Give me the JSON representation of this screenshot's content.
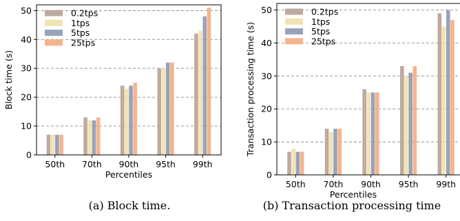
{
  "colors": {
    "0.2tps": "#bfaaa0",
    "1tps": "#f3e3b2",
    "5tps": "#98a3bb",
    "25tps": "#f6b48d",
    "grid": "#8c8c8c"
  },
  "chart_data": [
    {
      "type": "bar",
      "caption": "(a) Block time.",
      "xlabel": "Percentiles",
      "ylabel": "Block time (s)",
      "categories": [
        "50th",
        "70th",
        "90th",
        "95th",
        "99th"
      ],
      "ylim": [
        0,
        52
      ],
      "yticks": [
        0,
        10,
        20,
        30,
        40,
        50
      ],
      "grid": "horizontal dashed",
      "legend_position": "top-left",
      "series": [
        {
          "name": "0.2tps",
          "values": [
            7,
            13,
            24,
            30,
            42
          ]
        },
        {
          "name": "1tps",
          "values": [
            7,
            12,
            23,
            30,
            43
          ]
        },
        {
          "name": "5tps",
          "values": [
            7,
            12,
            24,
            32,
            48
          ]
        },
        {
          "name": "25tps",
          "values": [
            7,
            13,
            25,
            32,
            51
          ]
        }
      ]
    },
    {
      "type": "bar",
      "caption": "(b) Transaction processing time",
      "xlabel": "Percentiles",
      "ylabel": "Transaction processing time (s)",
      "categories": [
        "50th",
        "70th",
        "90th",
        "95th",
        "99th"
      ],
      "ylim": [
        0,
        52
      ],
      "yticks": [
        0,
        10,
        20,
        30,
        40,
        50
      ],
      "grid": "horizontal dashed",
      "legend_position": "top-left",
      "series": [
        {
          "name": "0.2tps",
          "values": [
            7,
            14,
            26,
            33,
            49
          ]
        },
        {
          "name": "1tps",
          "values": [
            8,
            13,
            25,
            30,
            45
          ]
        },
        {
          "name": "5tps",
          "values": [
            7,
            14,
            25,
            31,
            50
          ]
        },
        {
          "name": "25tps",
          "values": [
            7,
            14,
            25,
            33,
            47
          ]
        }
      ]
    }
  ]
}
